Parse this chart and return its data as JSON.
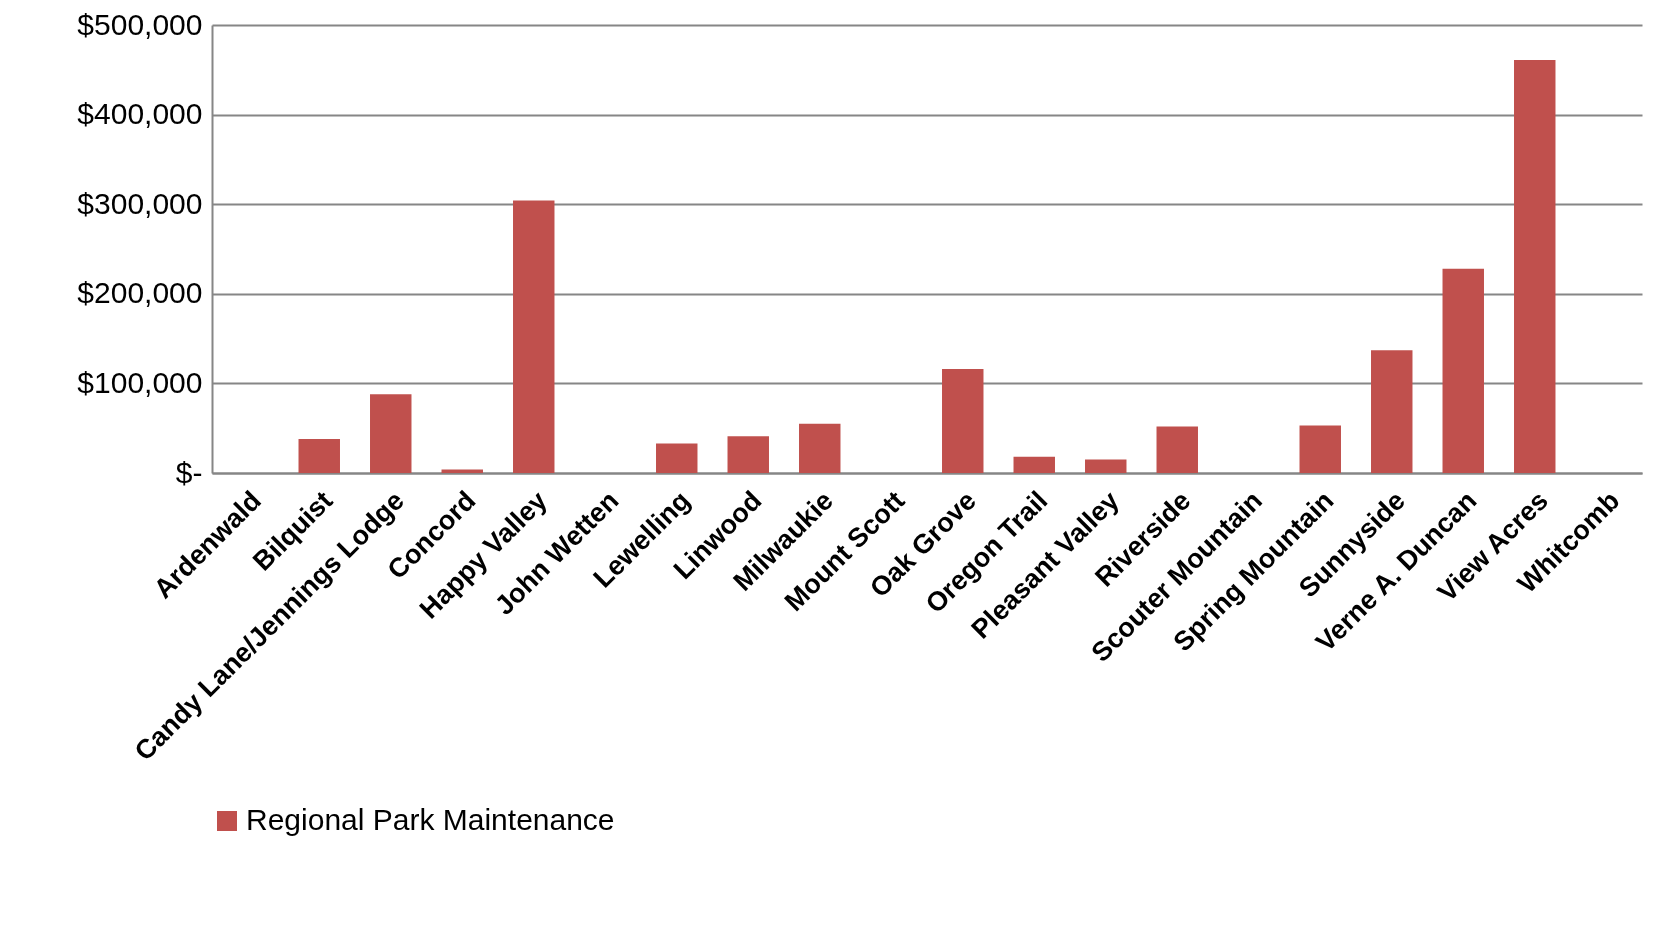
{
  "chart_data": {
    "type": "bar",
    "categories": [
      "Ardenwald",
      "Bilquist",
      "Candy Lane/Jennings Lodge",
      "Concord",
      "Happy Valley",
      "John Wetten",
      "Lewelling",
      "Linwood",
      "Milwaukie",
      "Mount Scott",
      "Oak Grove",
      "Oregon Trail",
      "Pleasant Valley",
      "Riverside",
      "Scouter Mountain",
      "Spring Mountain",
      "Sunnyside",
      "Verne A. Duncan",
      "View Acres",
      "Whitcomb"
    ],
    "series": [
      {
        "name": "Regional Park Maintenance",
        "color": "#c0504d",
        "values": [
          0,
          38000,
          88000,
          4000,
          304000,
          0,
          33000,
          41000,
          55000,
          0,
          116000,
          18000,
          15000,
          52000,
          0,
          53000,
          137000,
          228000,
          461000,
          0
        ]
      }
    ],
    "ylim": [
      0,
      500000
    ],
    "yticks": [
      {
        "value": 0,
        "label": "$-"
      },
      {
        "value": 100000,
        "label": "$100,000"
      },
      {
        "value": 200000,
        "label": "$200,000"
      },
      {
        "value": 300000,
        "label": "$300,000"
      },
      {
        "value": 400000,
        "label": "$400,000"
      },
      {
        "value": 500000,
        "label": "$500,000"
      }
    ],
    "grid": "y",
    "legend": "bottom"
  }
}
